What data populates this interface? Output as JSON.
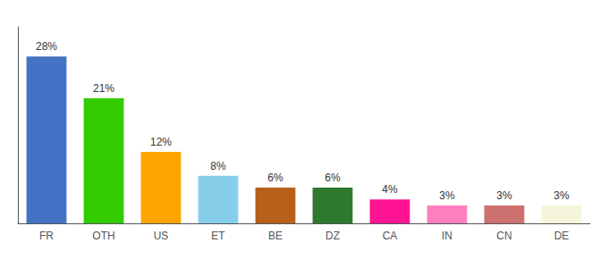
{
  "chart_data": {
    "type": "bar",
    "categories": [
      "FR",
      "OTH",
      "US",
      "ET",
      "BE",
      "DZ",
      "CA",
      "IN",
      "CN",
      "DE"
    ],
    "values": [
      28,
      21,
      12,
      8,
      6,
      6,
      4,
      3,
      3,
      3
    ],
    "value_labels": [
      "28%",
      "21%",
      "12%",
      "8%",
      "6%",
      "6%",
      "4%",
      "3%",
      "3%",
      "3%"
    ],
    "colors": [
      "#4472C4",
      "#33CC00",
      "#FFA500",
      "#87CEEB",
      "#B8601A",
      "#2D7A2D",
      "#FF1493",
      "#FF80C0",
      "#CD7070",
      "#F5F5DC"
    ],
    "ylim": [
      0,
      33
    ],
    "data_labels": true,
    "tick_labels": "x",
    "grid": false
  }
}
